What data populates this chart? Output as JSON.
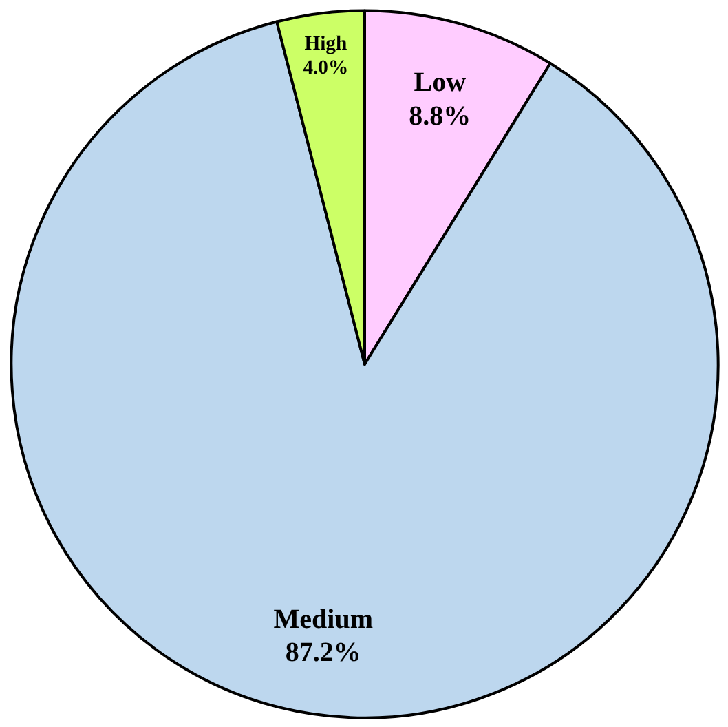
{
  "chart_data": {
    "type": "pie",
    "categories": [
      "Low",
      "Medium",
      "High"
    ],
    "values": [
      8.8,
      87.2,
      4.0
    ],
    "colors": [
      "#ffccff",
      "#bdd7ee",
      "#ccff66"
    ],
    "value_labels": [
      "8.8%",
      "87.2%",
      "4.0%"
    ]
  }
}
